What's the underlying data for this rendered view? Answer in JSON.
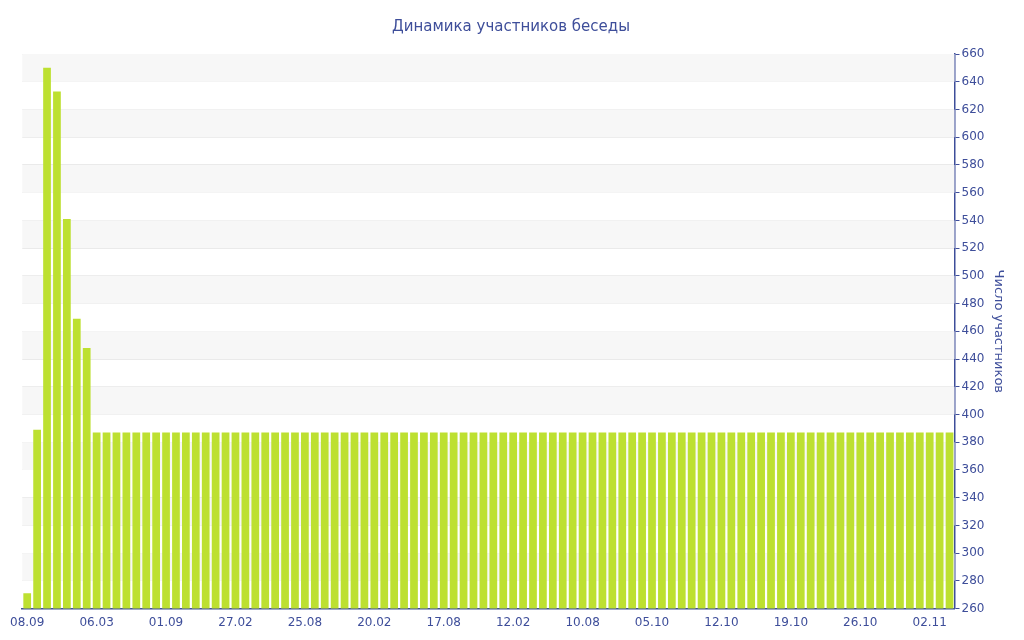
{
  "chart_data": {
    "type": "bar",
    "title": "Динамика участников беседы",
    "ylabel": "Число участников",
    "categories": [
      "08.09",
      null,
      null,
      null,
      null,
      null,
      null,
      "06.03",
      null,
      null,
      null,
      null,
      null,
      null,
      "01.09",
      null,
      null,
      null,
      null,
      null,
      null,
      "27.02",
      null,
      null,
      null,
      null,
      null,
      null,
      "25.08",
      null,
      null,
      null,
      null,
      null,
      null,
      "20.02",
      null,
      null,
      null,
      null,
      null,
      null,
      "17.08",
      null,
      null,
      null,
      null,
      null,
      null,
      "12.02",
      null,
      null,
      null,
      null,
      null,
      null,
      "10.08",
      null,
      null,
      null,
      null,
      null,
      null,
      "05.10",
      null,
      null,
      null,
      null,
      null,
      null,
      "12.10",
      null,
      null,
      null,
      null,
      null,
      null,
      "19.10",
      null,
      null,
      null,
      null,
      null,
      null,
      "26.10",
      null,
      null,
      null,
      null,
      null,
      null,
      "02.11",
      null,
      null
    ],
    "values": [
      271,
      389,
      650,
      633,
      541,
      469,
      448,
      387,
      387,
      387,
      387,
      387,
      387,
      387,
      387,
      387,
      387,
      387,
      387,
      387,
      387,
      387,
      387,
      387,
      387,
      387,
      387,
      387,
      387,
      387,
      387,
      387,
      387,
      387,
      387,
      387,
      387,
      387,
      387,
      387,
      387,
      387,
      387,
      387,
      387,
      387,
      387,
      387,
      387,
      387,
      387,
      387,
      387,
      387,
      387,
      387,
      387,
      387,
      387,
      387,
      387,
      387,
      387,
      387,
      387,
      387,
      387,
      387,
      387,
      387,
      387,
      387,
      387,
      387,
      387,
      387,
      387,
      387,
      387,
      387,
      387,
      387,
      387,
      387,
      387,
      387,
      387,
      387,
      387,
      387,
      387,
      387,
      387,
      387
    ],
    "color": "#bde031",
    "ylim": [
      260,
      660
    ],
    "yticks": [
      260,
      280,
      300,
      320,
      340,
      360,
      380,
      400,
      420,
      440,
      460,
      480,
      500,
      520,
      540,
      560,
      580,
      600,
      620,
      640,
      660
    ],
    "grid": "y",
    "legend": false
  }
}
